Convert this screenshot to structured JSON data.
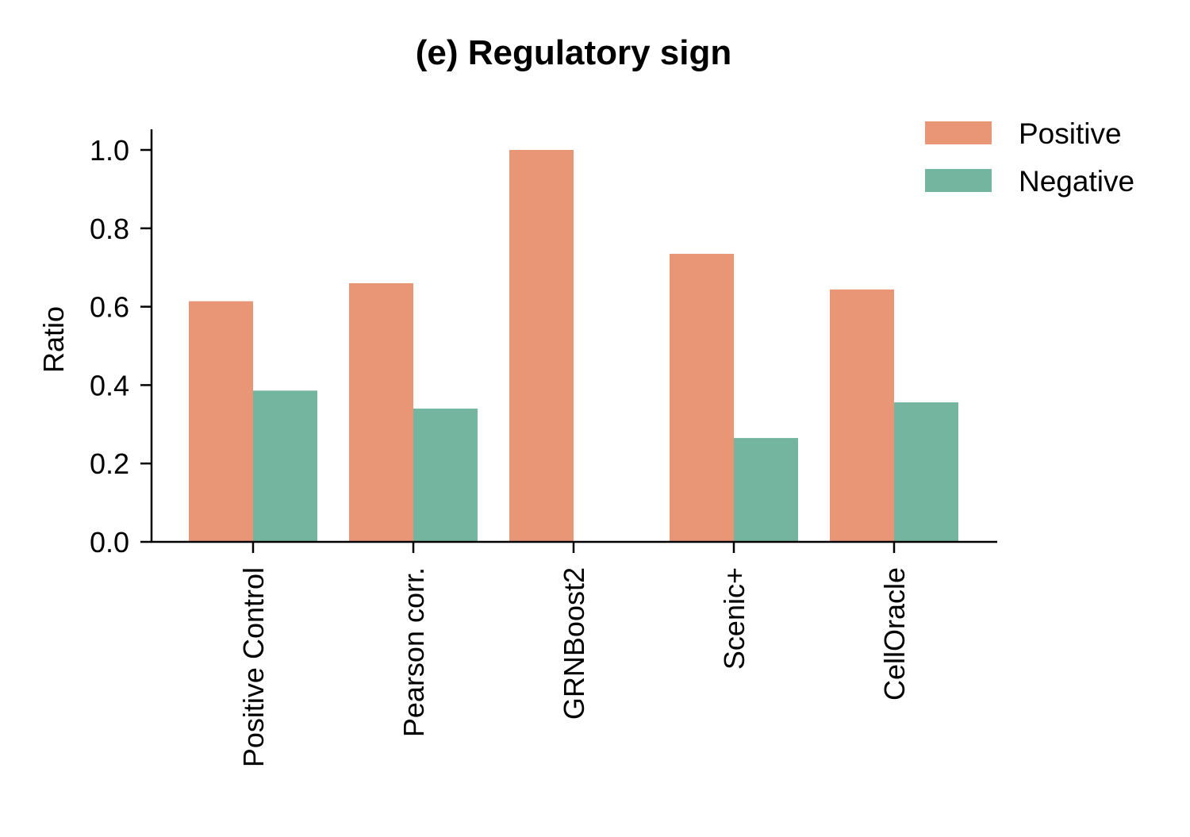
{
  "chart_data": {
    "type": "bar",
    "title": "(e) Regulatory sign",
    "xlabel": "",
    "ylabel": "Ratio",
    "categories": [
      "Positive Control",
      "Pearson corr.",
      "GRNBoost2",
      "Scenic+",
      "CellOracle"
    ],
    "series": [
      {
        "name": "Positive",
        "color": "#e89675",
        "values": [
          0.614,
          0.66,
          1.0,
          0.735,
          0.644
        ]
      },
      {
        "name": "Negative",
        "color": "#74b5a0",
        "values": [
          0.386,
          0.34,
          0.0,
          0.265,
          0.356
        ]
      }
    ],
    "ylim": [
      0,
      1.05
    ],
    "yticks": [
      "0.0",
      "0.2",
      "0.4",
      "0.6",
      "0.8",
      "1.0"
    ],
    "grid": false,
    "legend": {
      "position": "top-right"
    }
  }
}
